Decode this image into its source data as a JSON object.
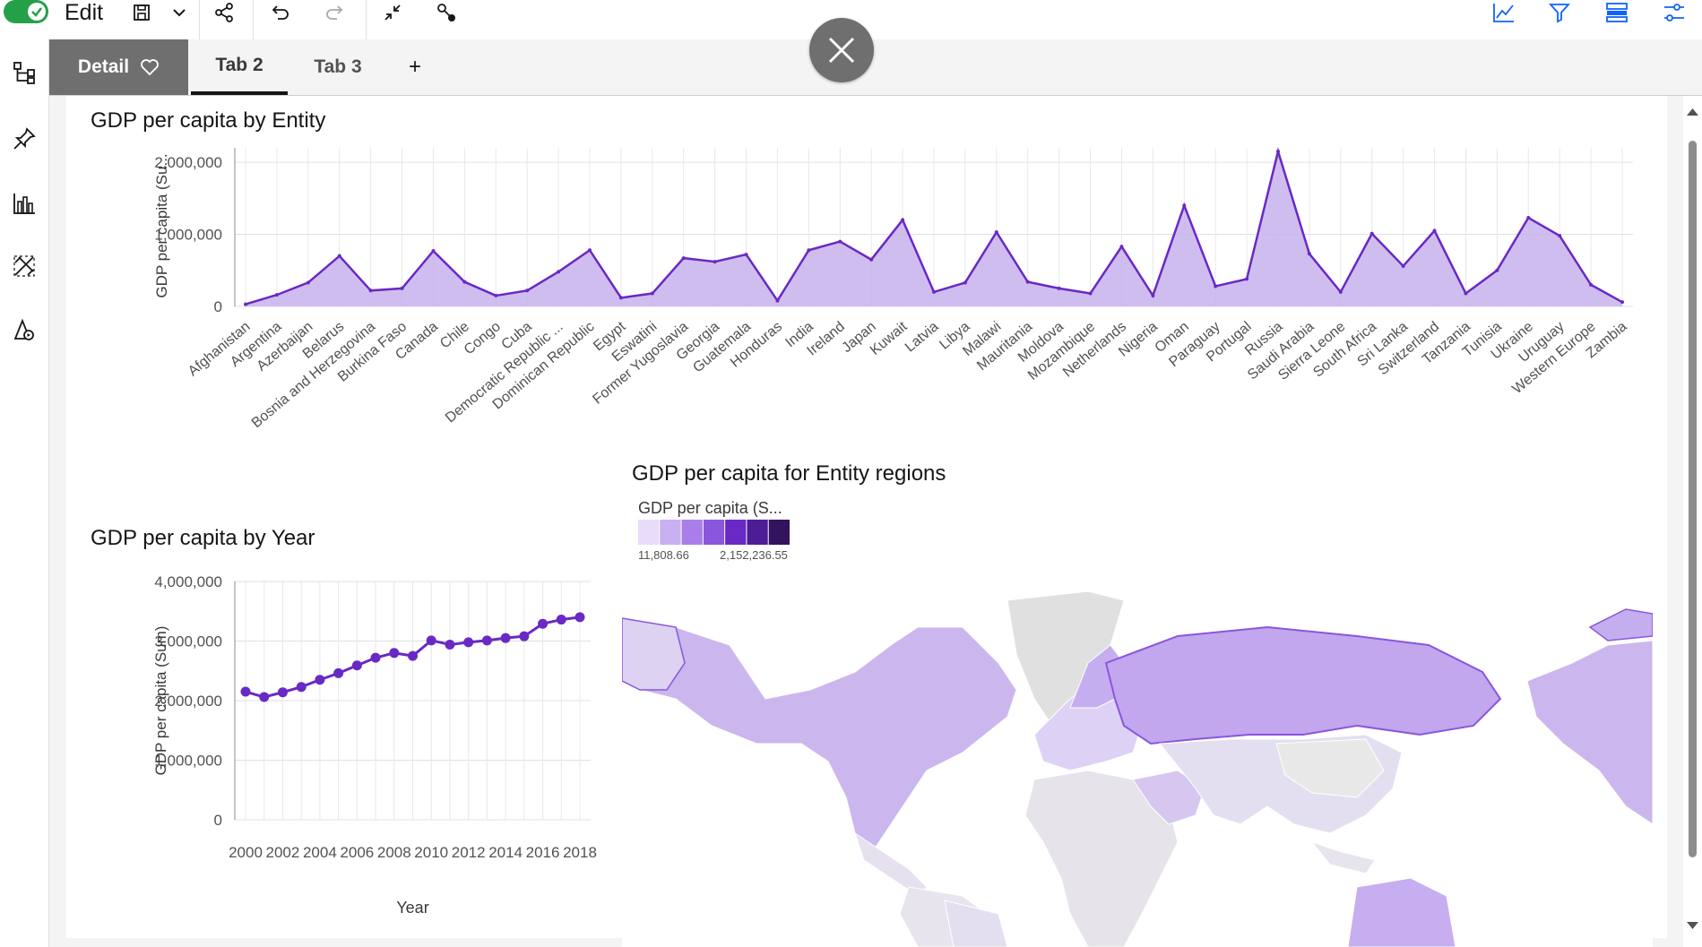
{
  "toolbar": {
    "edit_label": "Edit",
    "icons": [
      "save-icon",
      "chevron-down-icon",
      "share-icon",
      "undo-icon",
      "redo-icon",
      "collapse-icon",
      "key-icon",
      "line-chart-icon",
      "filter-icon",
      "layout-icon",
      "settings-sliders-icon"
    ]
  },
  "sidebar": {
    "icons": [
      "hierarchy-icon",
      "pin-icon",
      "bar-chart-icon",
      "data-tools-icon",
      "assistant-icon"
    ]
  },
  "tabs": [
    {
      "label": "Detail"
    },
    {
      "label": "Tab 2"
    },
    {
      "label": "Tab 3"
    },
    {
      "label": "+"
    }
  ],
  "colors": {
    "accent": "#6929c4",
    "area_fill": "#c8b2ec",
    "toggle_on": "#24a148"
  },
  "viz1": {
    "title": "GDP per capita by Entity",
    "ylabel": "GDP per capita (Su..."
  },
  "viz2": {
    "title": "GDP per capita by Year",
    "ylabel": "GDP per capita (Sum)",
    "xlabel": "Year"
  },
  "viz3": {
    "title": "GDP per capita for Entity regions",
    "legend_title": "GDP per capita (S...",
    "legend_min": "11,808.66",
    "legend_max": "2,152,236.55",
    "legend_colors": [
      "#e8dcf9",
      "#c9b0f2",
      "#a97ee8",
      "#8a56dc",
      "#6929c4",
      "#4c1d95",
      "#31135e"
    ],
    "warning_glyph": "!"
  },
  "chart_data": [
    {
      "type": "area",
      "title": "GDP per capita by Entity",
      "ylabel": "GDP per capita (Su...",
      "ylim": [
        0,
        2200000
      ],
      "yticks": [
        "0",
        "1,000,000",
        "2,000,000"
      ],
      "categories": [
        "Afghanistan",
        "Argentina",
        "Azerbaijan",
        "Belarus",
        "Bosnia and Herzegovina",
        "Burkina Faso",
        "Canada",
        "Chile",
        "Congo",
        "Cuba",
        "Democratic Republic ...",
        "Dominican Republic",
        "Egypt",
        "Eswatini",
        "Former Yugoslavia",
        "Georgia",
        "Guatemala",
        "Honduras",
        "India",
        "Ireland",
        "Japan",
        "Kuwait",
        "Latvia",
        "Libya",
        "Malawi",
        "Mauritania",
        "Moldova",
        "Mozambique",
        "Netherlands",
        "Nigeria",
        "Oman",
        "Paraguay",
        "Portugal",
        "Russia",
        "Saudi Arabia",
        "Sierra Leone",
        "South Africa",
        "Sri Lanka",
        "Switzerland",
        "Tanzania",
        "Tunisia",
        "Ukraine",
        "Uruguay",
        "Western Europe",
        "Zambia"
      ],
      "values": [
        30000,
        160000,
        330000,
        700000,
        220000,
        250000,
        770000,
        340000,
        150000,
        220000,
        480000,
        780000,
        120000,
        180000,
        670000,
        620000,
        720000,
        80000,
        780000,
        900000,
        650000,
        1200000,
        200000,
        330000,
        1030000,
        340000,
        250000,
        180000,
        830000,
        150000,
        1400000,
        280000,
        380000,
        2150000,
        730000,
        200000,
        1010000,
        560000,
        1050000,
        180000,
        500000,
        1230000,
        980000,
        300000,
        60000
      ],
      "grid": true
    },
    {
      "type": "line",
      "title": "GDP per capita by Year",
      "xlabel": "Year",
      "ylabel": "GDP per capita (Sum)",
      "ylim": [
        0,
        4000000
      ],
      "yticks": [
        "0",
        "1,000,000",
        "2,000,000",
        "3,000,000",
        "4,000,000"
      ],
      "xticks": [
        "2000",
        "2002",
        "2004",
        "2006",
        "2008",
        "2010",
        "2012",
        "2014",
        "2016",
        "2018"
      ],
      "x": [
        2000,
        2001,
        2002,
        2003,
        2004,
        2005,
        2006,
        2007,
        2008,
        2009,
        2010,
        2011,
        2012,
        2013,
        2014,
        2015,
        2016,
        2017,
        2018
      ],
      "values": [
        2150000,
        2060000,
        2140000,
        2230000,
        2350000,
        2460000,
        2590000,
        2720000,
        2800000,
        2750000,
        3010000,
        2940000,
        2980000,
        3010000,
        3050000,
        3080000,
        3290000,
        3360000,
        3400000
      ],
      "grid": true
    }
  ]
}
